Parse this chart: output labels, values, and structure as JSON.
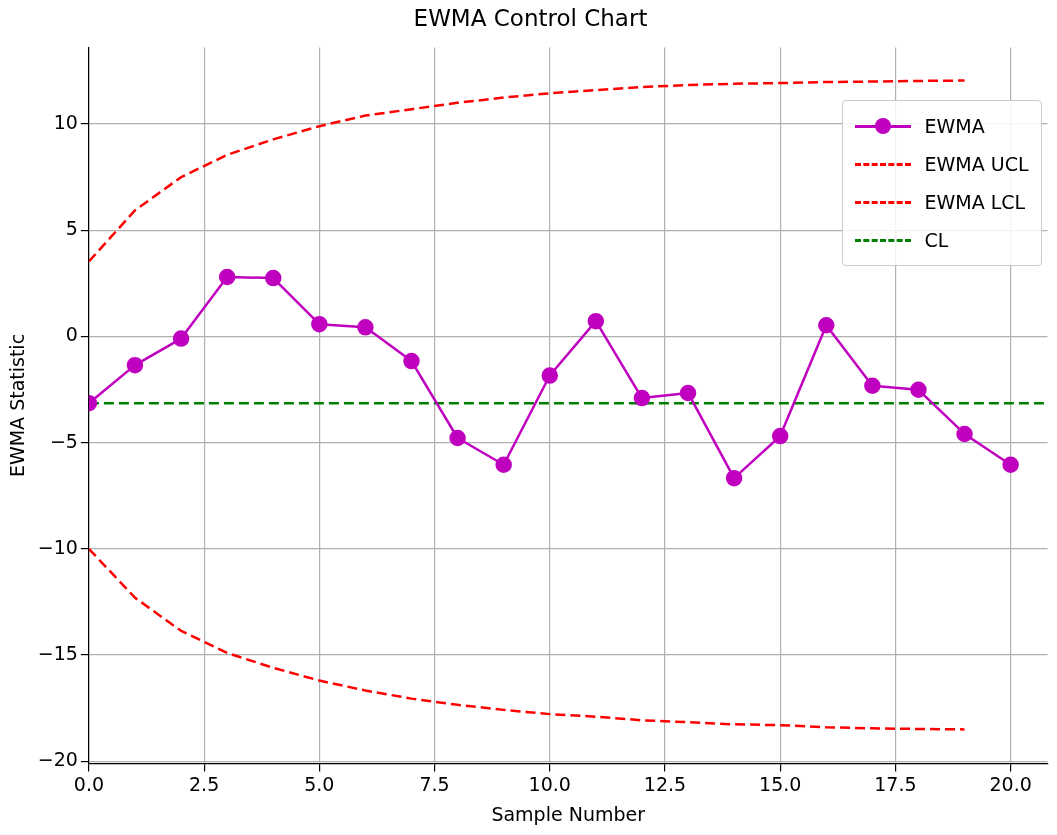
{
  "chart_data": {
    "type": "line",
    "title": "EWMA Control Chart",
    "xlabel": "Sample Number",
    "ylabel": "EWMA Statistic",
    "xlim": [
      0,
      20.8
    ],
    "ylim": [
      -20.1,
      13.6
    ],
    "xticks": [
      {
        "value": 0,
        "label": "0.0"
      },
      {
        "value": 2.5,
        "label": "2.5"
      },
      {
        "value": 5,
        "label": "5.0"
      },
      {
        "value": 7.5,
        "label": "7.5"
      },
      {
        "value": 10,
        "label": "10.0"
      },
      {
        "value": 12.5,
        "label": "12.5"
      },
      {
        "value": 15,
        "label": "15.0"
      },
      {
        "value": 17.5,
        "label": "17.5"
      },
      {
        "value": 20,
        "label": "20.0"
      }
    ],
    "yticks": [
      {
        "value": -20,
        "label": "−20"
      },
      {
        "value": -15,
        "label": "−15"
      },
      {
        "value": -10,
        "label": "−10"
      },
      {
        "value": -5,
        "label": "−5"
      },
      0,
      5,
      10
    ],
    "grid": true,
    "legend": "top right",
    "series": [
      {
        "name": "EWMA",
        "color": "#bf00bf",
        "marker": "circle",
        "line_style": "solid",
        "x": [
          0,
          1,
          2,
          3,
          4,
          5,
          6,
          7,
          8,
          9,
          10,
          11,
          12,
          13,
          14,
          15,
          16,
          17,
          18,
          19,
          20
        ],
        "values": [
          -3.14,
          -1.35,
          -0.1,
          2.8,
          2.75,
          0.58,
          0.43,
          -1.16,
          -4.78,
          -6.04,
          -1.84,
          0.72,
          -2.9,
          -2.66,
          -6.67,
          -4.69,
          0.53,
          -2.32,
          -2.51,
          -4.59,
          -6.04
        ]
      },
      {
        "name": "EWMA UCL",
        "color": "#ff0000",
        "marker": "none",
        "line_style": "dashed",
        "x": [
          0,
          1,
          2,
          3,
          4,
          5,
          6,
          7,
          8,
          9,
          10,
          11,
          12,
          13,
          14,
          15,
          16,
          17,
          18,
          19
        ],
        "values": [
          3.53,
          5.94,
          7.5,
          8.55,
          9.28,
          9.9,
          10.4,
          10.7,
          11.0,
          11.25,
          11.45,
          11.6,
          11.74,
          11.84,
          11.9,
          11.93,
          11.98,
          12.0,
          12.03,
          12.05
        ]
      },
      {
        "name": "EWMA LCL",
        "color": "#ff0000",
        "marker": "none",
        "line_style": "dashed",
        "x": [
          0,
          1,
          2,
          3,
          4,
          5,
          6,
          7,
          8,
          9,
          10,
          11,
          12,
          13,
          14,
          15,
          16,
          17,
          18,
          19
        ],
        "values": [
          -10.0,
          -12.3,
          -13.86,
          -14.9,
          -15.6,
          -16.2,
          -16.67,
          -17.05,
          -17.34,
          -17.58,
          -17.78,
          -17.9,
          -18.07,
          -18.16,
          -18.26,
          -18.3,
          -18.4,
          -18.45,
          -18.48,
          -18.5
        ]
      },
      {
        "name": "CL",
        "color": "#008000",
        "marker": "none",
        "line_style": "dashed",
        "x": [
          0,
          20.8
        ],
        "values": [
          -3.14,
          -3.14
        ]
      }
    ]
  }
}
